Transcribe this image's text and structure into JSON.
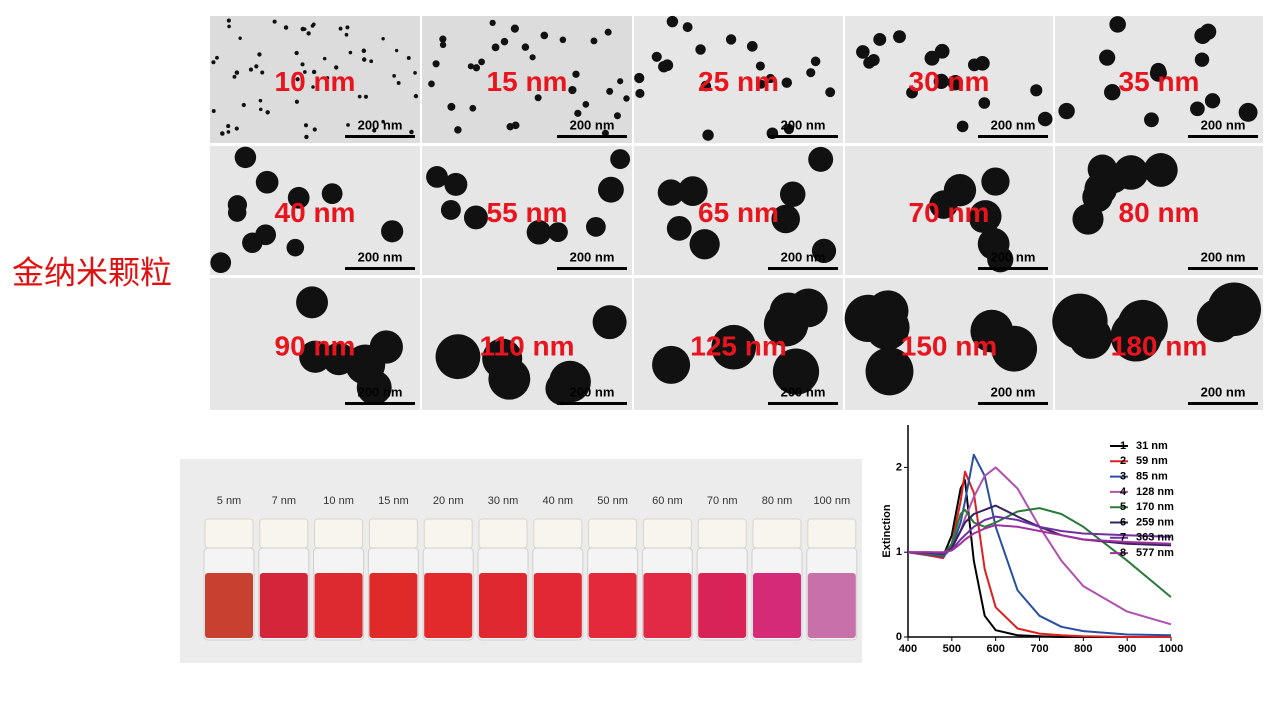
{
  "title": "金纳米颗粒",
  "tem_images": [
    {
      "label": "10 nm",
      "scale": "200 nm"
    },
    {
      "label": "15 nm",
      "scale": "200 nm"
    },
    {
      "label": "25 nm",
      "scale": "200 nm"
    },
    {
      "label": "30 nm",
      "scale": "200 nm"
    },
    {
      "label": "35 nm",
      "scale": "200 nm"
    },
    {
      "label": "40 nm",
      "scale": "200 nm"
    },
    {
      "label": "55 nm",
      "scale": "200 nm"
    },
    {
      "label": "65 nm",
      "scale": "200 nm"
    },
    {
      "label": "70 nm",
      "scale": "200 nm"
    },
    {
      "label": "80 nm",
      "scale": "200 nm"
    },
    {
      "label": "90 nm",
      "scale": "200 nm"
    },
    {
      "label": "110 nm",
      "scale": "200 nm"
    },
    {
      "label": "125 nm",
      "scale": "200 nm"
    },
    {
      "label": "150 nm",
      "scale": "200 nm"
    },
    {
      "label": "180 nm",
      "scale": "200 nm"
    }
  ],
  "vials": [
    {
      "label": "5 nm",
      "color": "#c8412e"
    },
    {
      "label": "7 nm",
      "color": "#d3263a"
    },
    {
      "label": "10 nm",
      "color": "#dc2a30"
    },
    {
      "label": "15 nm",
      "color": "#e02a2a"
    },
    {
      "label": "20 nm",
      "color": "#e22a2c"
    },
    {
      "label": "30 nm",
      "color": "#e02830"
    },
    {
      "label": "40 nm",
      "color": "#e22834"
    },
    {
      "label": "50 nm",
      "color": "#e42a3a"
    },
    {
      "label": "60 nm",
      "color": "#e22a46"
    },
    {
      "label": "70 nm",
      "color": "#d82356"
    },
    {
      "label": "80 nm",
      "color": "#d42a78"
    },
    {
      "label": "100 nm",
      "color": "#c870a8"
    }
  ],
  "chart_data": {
    "type": "line",
    "ylabel": "Extinction",
    "x": [
      400,
      450,
      480,
      500,
      520,
      530,
      550,
      575,
      600,
      650,
      700,
      750,
      800,
      900,
      1000
    ],
    "xlim": [
      400,
      1000
    ],
    "xticks": [
      400,
      500,
      600,
      700,
      800,
      900,
      1000
    ],
    "ylim": [
      0,
      2.5
    ],
    "yticks": [
      0,
      1,
      2
    ],
    "series": [
      {
        "number": "1",
        "name": "31 nm",
        "color": "#000000",
        "values": [
          1.0,
          0.97,
          0.95,
          1.2,
          1.75,
          1.85,
          0.9,
          0.25,
          0.08,
          0.02,
          0.01,
          0,
          0,
          0,
          0
        ]
      },
      {
        "number": "2",
        "name": "59 nm",
        "color": "#e02020",
        "values": [
          1.0,
          0.96,
          0.93,
          1.1,
          1.6,
          1.95,
          1.7,
          0.8,
          0.35,
          0.1,
          0.04,
          0.02,
          0.01,
          0,
          0
        ]
      },
      {
        "number": "3",
        "name": "85 nm",
        "color": "#2a4fa0",
        "values": [
          1.0,
          0.97,
          0.95,
          1.05,
          1.35,
          1.6,
          2.15,
          1.9,
          1.3,
          0.55,
          0.25,
          0.12,
          0.07,
          0.03,
          0.02
        ]
      },
      {
        "number": "4",
        "name": "128 nm",
        "color": "#b050b0",
        "values": [
          1.0,
          0.98,
          0.97,
          1.05,
          1.25,
          1.4,
          1.65,
          1.9,
          2.0,
          1.75,
          1.3,
          0.9,
          0.6,
          0.3,
          0.15
        ]
      },
      {
        "number": "5",
        "name": "170 nm",
        "color": "#2a7a3a",
        "values": [
          1.0,
          0.98,
          0.97,
          1.1,
          1.45,
          1.5,
          1.35,
          1.3,
          1.35,
          1.48,
          1.52,
          1.45,
          1.3,
          0.9,
          0.47
        ]
      },
      {
        "number": "6",
        "name": "259 nm",
        "color": "#3a2060",
        "values": [
          1.0,
          0.99,
          0.98,
          1.05,
          1.25,
          1.35,
          1.45,
          1.5,
          1.55,
          1.42,
          1.3,
          1.2,
          1.15,
          1.1,
          1.08
        ]
      },
      {
        "number": "7",
        "name": "363 nm",
        "color": "#7030a0",
        "values": [
          1.0,
          1.0,
          0.99,
          1.03,
          1.15,
          1.2,
          1.3,
          1.38,
          1.42,
          1.38,
          1.3,
          1.25,
          1.22,
          1.2,
          1.18
        ]
      },
      {
        "number": "8",
        "name": "577 nm",
        "color": "#a030a0",
        "values": [
          1.0,
          1.0,
          1.0,
          1.02,
          1.1,
          1.15,
          1.22,
          1.28,
          1.32,
          1.3,
          1.25,
          1.2,
          1.15,
          1.12,
          1.1
        ]
      }
    ]
  }
}
